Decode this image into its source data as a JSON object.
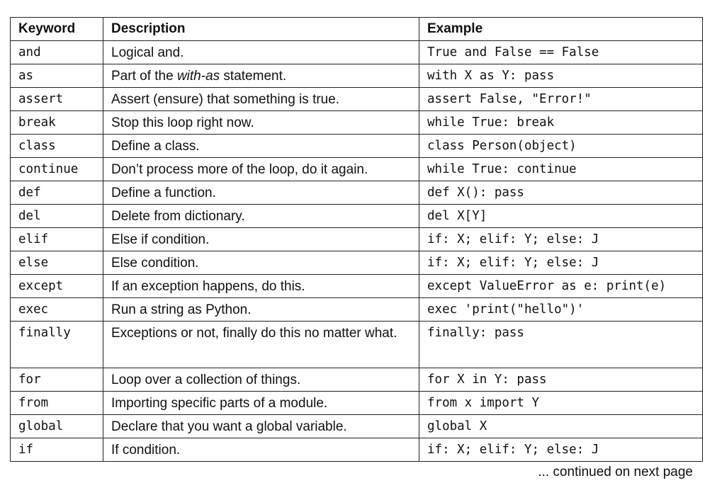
{
  "table": {
    "headers": [
      "Keyword",
      "Description",
      "Example"
    ],
    "rows": [
      {
        "keyword": "and",
        "description": "Logical and.",
        "example": "True and False == False"
      },
      {
        "keyword": "as",
        "description_parts": [
          "Part of the ",
          "with-as",
          " statement."
        ],
        "example": "with X as Y: pass"
      },
      {
        "keyword": "assert",
        "description": "Assert (ensure) that something is true.",
        "example": "assert False, \"Error!\""
      },
      {
        "keyword": "break",
        "description": "Stop this loop right now.",
        "example": "while True: break"
      },
      {
        "keyword": "class",
        "description": "Define a class.",
        "example": "class Person(object)"
      },
      {
        "keyword": "continue",
        "description": "Don’t process more of the loop, do it again.",
        "example": "while True: continue"
      },
      {
        "keyword": "def",
        "description": "Define a function.",
        "example": "def X(): pass"
      },
      {
        "keyword": "del",
        "description": "Delete from dictionary.",
        "example": "del X[Y]"
      },
      {
        "keyword": "elif",
        "description": "Else if condition.",
        "example": "if: X; elif: Y; else: J"
      },
      {
        "keyword": "else",
        "description": "Else condition.",
        "example": "if: X; elif: Y; else: J"
      },
      {
        "keyword": "except",
        "description": "If an exception happens, do this.",
        "example": "except ValueError as e: print(e)"
      },
      {
        "keyword": "exec",
        "description": "Run a string as Python.",
        "example": "exec 'print(\"hello\")'"
      },
      {
        "keyword": "finally",
        "description": "Exceptions or not, finally do this no matter what.",
        "example": "finally: pass"
      },
      {
        "keyword": "for",
        "description": "Loop over a collection of things.",
        "example": "for X in Y: pass"
      },
      {
        "keyword": "from",
        "description": "Importing specific parts of a module.",
        "example": "from x import Y"
      },
      {
        "keyword": "global",
        "description": "Declare that you want a global variable.",
        "example": "global X"
      },
      {
        "keyword": "if",
        "description": "If condition.",
        "example": "if: X; elif: Y; else: J"
      }
    ]
  },
  "footer": "... continued on next page"
}
